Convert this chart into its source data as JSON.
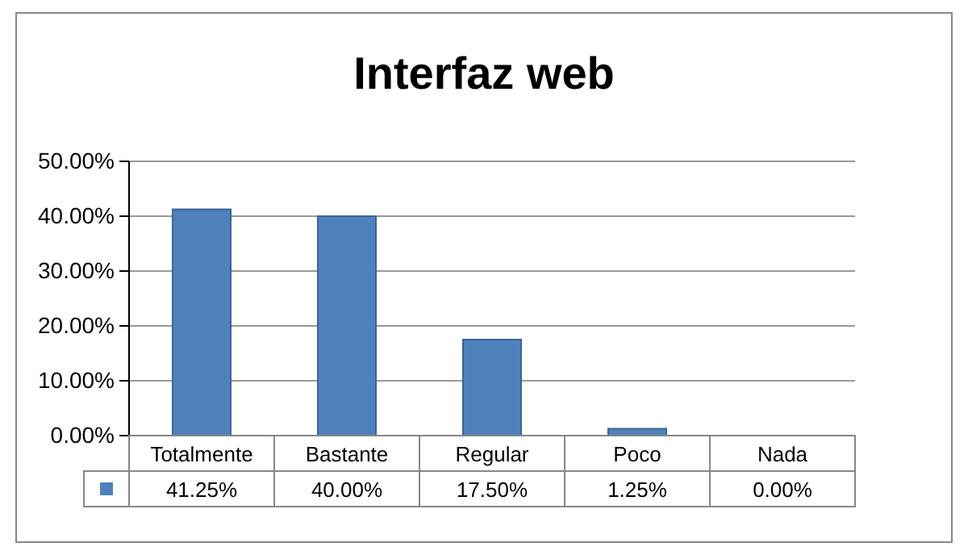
{
  "chart_data": {
    "type": "bar",
    "title": "Interfaz web",
    "categories": [
      "Totalmente",
      "Bastante",
      "Regular",
      "Poco",
      "Nada"
    ],
    "values": [
      41.25,
      40.0,
      17.5,
      1.25,
      0.0
    ],
    "value_labels": [
      "41.25%",
      "40.00%",
      "17.50%",
      "1.25%",
      "0.00%"
    ],
    "color": "#4f81bd",
    "ylim": [
      0,
      50
    ],
    "yticks": [
      {
        "value": 0,
        "label": "0.00%"
      },
      {
        "value": 10,
        "label": "10.00%"
      },
      {
        "value": 20,
        "label": "20.00%"
      },
      {
        "value": 30,
        "label": "30.00%"
      },
      {
        "value": 40,
        "label": "40.00%"
      },
      {
        "value": 50,
        "label": "50.00%"
      }
    ],
    "grid": "y"
  }
}
